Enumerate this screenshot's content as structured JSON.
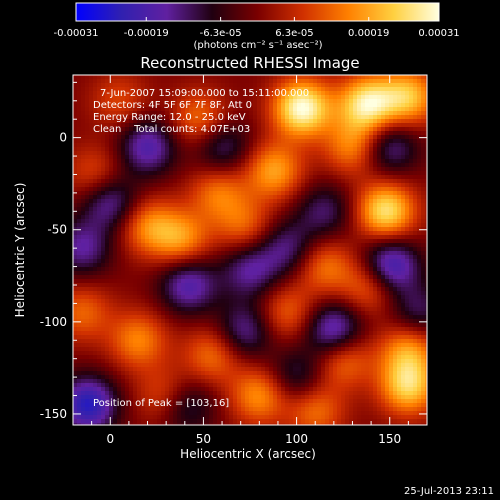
{
  "chart_data": {
    "type": "heatmap",
    "title": "Reconstructed RHESSI Image",
    "xlabel": "Heliocentric X (arcsec)",
    "ylabel": "Heliocentric Y (arcsec)",
    "xlim": [
      -20,
      170
    ],
    "ylim": [
      -156,
      34
    ],
    "xticks": [
      0,
      50,
      100,
      150
    ],
    "yticks": [
      0,
      -50,
      -100,
      -150
    ],
    "colorbar": {
      "range": [
        -0.00031,
        0.00031
      ],
      "tick_labels": [
        "-0.00031",
        "-0.00019",
        "-6.3e-05",
        "6.3e-05",
        "0.00019",
        "0.00031"
      ],
      "tick_values": [
        -0.00031,
        -0.00019,
        -6.3e-05,
        6.3e-05,
        0.00019,
        0.00031
      ],
      "units_label": "(photons cm⁻² s⁻¹ asec⁻²)",
      "colors": [
        "#0000ff",
        "#3020b0",
        "#6020a0",
        "#200010",
        "#7a0000",
        "#d03000",
        "#ff8000",
        "#ffd040",
        "#ffffe0"
      ]
    },
    "annotations": [
      "7-Jun-2007 15:09:00.000 to 15:11:00.000",
      "Detectors: 4F 5F 6F 7F 8F, Att 0",
      "Energy Range: 12.0 - 25.0 keV",
      "Clean    Total counts: 4.07E+03"
    ],
    "peak_label": "Position of Peak = [103,16]",
    "peak": [
      103,
      16
    ],
    "sources": [
      {
        "x": 103,
        "y": 16,
        "v": 1.0
      },
      {
        "x": 138,
        "y": 18,
        "v": 0.9
      },
      {
        "x": 160,
        "y": 22,
        "v": 0.7
      },
      {
        "x": 148,
        "y": -40,
        "v": 0.85
      },
      {
        "x": 130,
        "y": -5,
        "v": 0.5
      },
      {
        "x": 88,
        "y": -18,
        "v": 0.6
      },
      {
        "x": 48,
        "y": 10,
        "v": 0.45
      },
      {
        "x": 58,
        "y": -30,
        "v": 0.45
      },
      {
        "x": 20,
        "y": -48,
        "v": 0.5
      },
      {
        "x": 38,
        "y": -55,
        "v": 0.55
      },
      {
        "x": 72,
        "y": -48,
        "v": 0.4
      },
      {
        "x": 140,
        "y": -80,
        "v": 0.5
      },
      {
        "x": 115,
        "y": -70,
        "v": 0.45
      },
      {
        "x": 95,
        "y": -95,
        "v": 0.4
      },
      {
        "x": 160,
        "y": -115,
        "v": 0.55
      },
      {
        "x": 160,
        "y": -135,
        "v": 0.75
      },
      {
        "x": 125,
        "y": -120,
        "v": 0.5
      },
      {
        "x": 55,
        "y": -118,
        "v": 0.45
      },
      {
        "x": 15,
        "y": -110,
        "v": 0.5
      },
      {
        "x": 80,
        "y": -140,
        "v": 0.55
      },
      {
        "x": 110,
        "y": -148,
        "v": 0.45
      },
      {
        "x": 30,
        "y": -140,
        "v": 0.4
      },
      {
        "x": -15,
        "y": -95,
        "v": 0.4
      },
      {
        "x": -8,
        "y": -20,
        "v": 0.35
      },
      {
        "x": 5,
        "y": 20,
        "v": 0.3
      },
      {
        "x": 0,
        "y": -35,
        "v": -0.55
      },
      {
        "x": 20,
        "y": -5,
        "v": -0.6
      },
      {
        "x": 60,
        "y": -5,
        "v": -0.45
      },
      {
        "x": 42,
        "y": -80,
        "v": -0.6
      },
      {
        "x": 75,
        "y": -72,
        "v": -0.5
      },
      {
        "x": 95,
        "y": -60,
        "v": -0.45
      },
      {
        "x": 150,
        "y": -70,
        "v": -0.8
      },
      {
        "x": 150,
        "y": -5,
        "v": -0.5
      },
      {
        "x": 115,
        "y": -40,
        "v": -0.4
      },
      {
        "x": -12,
        "y": -145,
        "v": -0.8
      },
      {
        "x": -15,
        "y": -60,
        "v": -0.5
      },
      {
        "x": 120,
        "y": -105,
        "v": -0.7
      },
      {
        "x": 72,
        "y": -105,
        "v": -0.5
      },
      {
        "x": 40,
        "y": -145,
        "v": -0.45
      },
      {
        "x": 100,
        "y": -130,
        "v": -0.4
      },
      {
        "x": 165,
        "y": -95,
        "v": -0.4
      }
    ]
  },
  "footer_date": "25-Jul-2013 23:11"
}
